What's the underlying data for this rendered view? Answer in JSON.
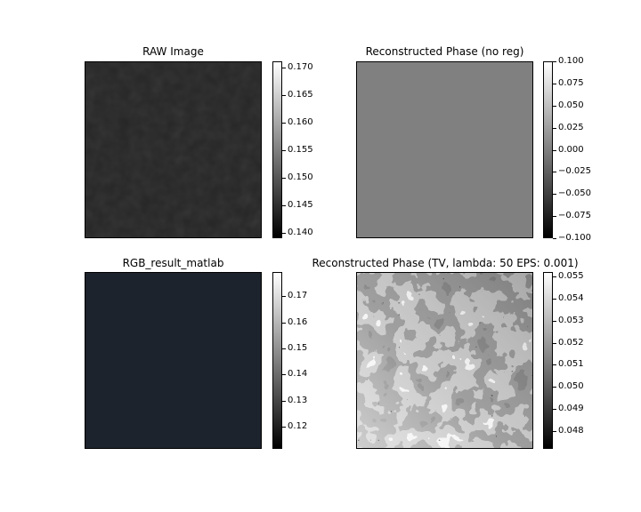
{
  "figure": {
    "background": "#ffffff"
  },
  "chart_data": [
    {
      "type": "heatmap",
      "title": "RAW Image",
      "colormap": "gray",
      "image_tone": "#262626",
      "colorbar": {
        "range": [
          0.139,
          0.1712
        ],
        "ticks": [
          "0.140",
          "0.145",
          "0.150",
          "0.155",
          "0.160",
          "0.165",
          "0.170"
        ],
        "tick_values": [
          0.14,
          0.145,
          0.15,
          0.155,
          0.16,
          0.165,
          0.17
        ]
      }
    },
    {
      "type": "heatmap",
      "title": "Reconstructed Phase (no reg)",
      "colormap": "gray",
      "image_tone": "#808080",
      "colorbar": {
        "range": [
          -0.1,
          0.1
        ],
        "ticks": [
          "0.100",
          "0.075",
          "0.050",
          "0.025",
          "0.000",
          "−0.025",
          "−0.050",
          "−0.075",
          "−0.100"
        ],
        "tick_values": [
          0.1,
          0.075,
          0.05,
          0.025,
          0.0,
          -0.025,
          -0.05,
          -0.075,
          -0.1
        ]
      }
    },
    {
      "type": "heatmap",
      "title": "RGB_result_matlab",
      "colormap": "gray",
      "image_tone": "#1d232c",
      "colorbar": {
        "range": [
          0.1116,
          0.1792
        ],
        "ticks": [
          "0.17",
          "0.16",
          "0.15",
          "0.14",
          "0.13",
          "0.12"
        ],
        "tick_values": [
          0.17,
          0.16,
          0.15,
          0.14,
          0.13,
          0.12
        ]
      }
    },
    {
      "type": "heatmap",
      "title": "Reconstructed Phase (TV, lambda: 50 EPS: 0.001)",
      "colormap": "gray",
      "image_tone": "#3c3c3c",
      "colorbar": {
        "range": [
          0.0472,
          0.0552
        ],
        "ticks": [
          "0.055",
          "0.054",
          "0.053",
          "0.052",
          "0.051",
          "0.050",
          "0.049",
          "0.048"
        ],
        "tick_values": [
          0.055,
          0.054,
          0.053,
          0.052,
          0.051,
          0.05,
          0.049,
          0.048
        ]
      }
    }
  ]
}
